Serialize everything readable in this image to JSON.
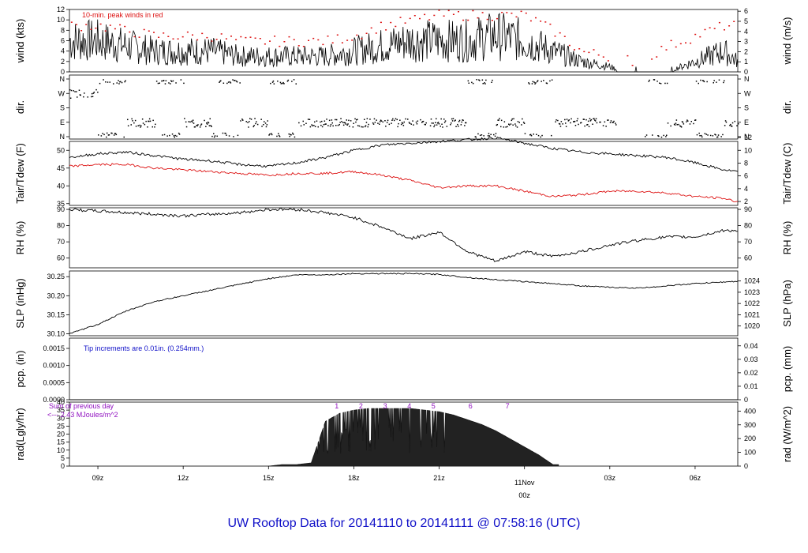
{
  "title": "UW Rooftop Data for 20141110  to  20141111 @ 07:58:16  (UTC)",
  "colors": {
    "red": "#dd1111",
    "black": "#000000",
    "blue": "#1010c8",
    "purple": "#9010c0",
    "title": "#1010c8"
  },
  "x_axis": {
    "hours_span": 23.5,
    "ticks": [
      {
        "h": 1,
        "label": "09z"
      },
      {
        "h": 4,
        "label": "12z"
      },
      {
        "h": 7,
        "label": "15z"
      },
      {
        "h": 10,
        "label": "18z"
      },
      {
        "h": 13,
        "label": "21z"
      },
      {
        "h": 16,
        "label": "00z"
      },
      {
        "h": 19,
        "label": "03z"
      },
      {
        "h": 22,
        "label": "06z"
      }
    ],
    "date_label": "11Nov",
    "date_label_hour": 16
  },
  "panels": {
    "wind": {
      "left_label": "wind (kts)",
      "right_label": "wind (m/s)",
      "note": "10-min. peak winds in red",
      "left_ticks": [
        "0",
        "2",
        "4",
        "6",
        "8",
        "10",
        "12"
      ],
      "right_ticks": [
        "0",
        "1",
        "2",
        "3",
        "4",
        "5",
        "6"
      ]
    },
    "dir": {
      "left_label": "dir.",
      "right_label": "dir.",
      "ticks": [
        "N",
        "E",
        "S",
        "W",
        "N"
      ]
    },
    "temp": {
      "left_label": "Tair/Tdew (F)",
      "right_label": "Tair/Tdew (C)",
      "left_ticks": [
        "35",
        "40",
        "45",
        "50"
      ],
      "right_ticks": [
        "2",
        "4",
        "6",
        "8",
        "10",
        "12"
      ]
    },
    "rh": {
      "left_label": "RH (%)",
      "right_label": "RH (%)",
      "left_ticks": [
        "60",
        "70",
        "80",
        "90"
      ],
      "right_ticks": [
        "60",
        "70",
        "80",
        "90"
      ]
    },
    "slp": {
      "left_label": "SLP (inHg)",
      "right_label": "SLP (hPa)",
      "left_ticks": [
        "30.10",
        "30.15",
        "30.20",
        "30.25"
      ],
      "right_ticks": [
        "1020",
        "1021",
        "1022",
        "1023",
        "1024"
      ]
    },
    "pcp": {
      "left_label": "pcp. (in)",
      "right_label": "pcp. (mm)",
      "note": "Tip increments are 0.01in. (0.254mm.)",
      "left_ticks": [
        "0.0000",
        "0.0005",
        "0.0010",
        "0.0015"
      ],
      "right_ticks": [
        "0",
        "0.01",
        "0.02",
        "0.03",
        "0.04"
      ]
    },
    "rad": {
      "left_label": "rad(Lgly/hr)",
      "right_label": "rad (W/m^2)",
      "note1": "Sum of previous day",
      "note2": "<--- 2.43 MJoules/m^2",
      "left_ticks": [
        "0",
        "5",
        "10",
        "15",
        "20",
        "25",
        "30",
        "35",
        "40"
      ],
      "right_ticks": [
        "0",
        "100",
        "200",
        "300",
        "400"
      ],
      "hour_marks": [
        "1",
        "2",
        "3",
        "4",
        "5",
        "6",
        "7"
      ]
    }
  },
  "chart_data": [
    {
      "type": "line",
      "name": "wind",
      "x_unit": "hours after 08z 2014-11-10",
      "series": [
        {
          "name": "wind speed (kts)",
          "color": "#000000",
          "x": [
            0,
            1,
            2,
            3,
            4,
            5,
            6,
            7,
            8,
            9,
            10,
            11,
            12,
            13,
            14,
            15,
            16,
            17,
            18,
            19,
            19.5,
            20,
            21,
            22,
            23,
            23.5
          ],
          "values": [
            6,
            6,
            5,
            4,
            4,
            4,
            3,
            3,
            3,
            3,
            4,
            5,
            6,
            6,
            6,
            7,
            6,
            4,
            2,
            1,
            0,
            0,
            0,
            2,
            4,
            2
          ]
        },
        {
          "name": "10-min peak (kts)",
          "color": "#dd1111",
          "x": [
            0,
            1,
            2,
            3,
            4,
            5,
            6,
            7,
            8,
            9,
            10,
            11,
            12,
            13,
            14,
            15,
            16,
            17,
            18,
            19,
            20,
            21,
            22,
            23
          ],
          "values": [
            9,
            9,
            8,
            7,
            7,
            7,
            6,
            6,
            6,
            6,
            7,
            9,
            10,
            11,
            11,
            11,
            11,
            8,
            4,
            3,
            2,
            5,
            7,
            9
          ]
        }
      ],
      "ylim": [
        0,
        12
      ]
    },
    {
      "type": "scatter",
      "name": "wind direction",
      "categories_y": [
        "N",
        "E",
        "S",
        "W",
        "N"
      ],
      "x": [
        0,
        0.5,
        1,
        2,
        3,
        4,
        5,
        6,
        7,
        8,
        9,
        10,
        11,
        12,
        13,
        14,
        15,
        16,
        17,
        18,
        19,
        20,
        21,
        22,
        23
      ],
      "values": [
        "W",
        "W",
        "N",
        "E",
        "N",
        "E",
        "N",
        "E",
        "N",
        "E",
        "E",
        "E",
        "E",
        "E",
        "E",
        "N",
        "E",
        "N",
        "E",
        "E",
        "E",
        "N",
        "E",
        "N",
        "E"
      ]
    },
    {
      "type": "line",
      "name": "temperature",
      "x": [
        0,
        1,
        2,
        3,
        4,
        5,
        6,
        7,
        8,
        9,
        10,
        11,
        12,
        13,
        14,
        15,
        16,
        17,
        18,
        19,
        20,
        21,
        22,
        23,
        23.5
      ],
      "series": [
        {
          "name": "Tair (F)",
          "color": "#000000",
          "values": [
            48,
            49,
            49.5,
            48.5,
            47.5,
            47,
            46,
            45.5,
            46.5,
            48,
            50,
            51.5,
            52,
            52.5,
            53,
            53.5,
            52,
            50.5,
            49.5,
            49,
            48.5,
            48,
            46.5,
            44.5,
            44
          ]
        },
        {
          "name": "Tdew (F)",
          "color": "#dd1111",
          "values": [
            45.5,
            46,
            46,
            45,
            44.5,
            44,
            43.5,
            43,
            43.5,
            43.5,
            44,
            43,
            41.5,
            39.5,
            40,
            40,
            38.5,
            37,
            37.5,
            38.5,
            38.5,
            38,
            37,
            36.5,
            35.5
          ]
        }
      ],
      "ylim": [
        34.5,
        52.5
      ]
    },
    {
      "type": "line",
      "name": "RH",
      "x": [
        0,
        1,
        2,
        3,
        4,
        5,
        6,
        7,
        8,
        9,
        10,
        11,
        12,
        13,
        14,
        15,
        16,
        17,
        18,
        19,
        20,
        21,
        22,
        23,
        23.5
      ],
      "series": [
        {
          "name": "RH (%)",
          "color": "#000000",
          "values": [
            90,
            89,
            88,
            87,
            86,
            87,
            88,
            90,
            90,
            88,
            85,
            79,
            72,
            76,
            64,
            58,
            64,
            61,
            64,
            68,
            71,
            73,
            73,
            77,
            77
          ]
        }
      ],
      "ylim": [
        54,
        91
      ]
    },
    {
      "type": "line",
      "name": "SLP",
      "x": [
        0,
        1,
        2,
        3,
        4,
        5,
        6,
        7,
        8,
        9,
        10,
        11,
        12,
        13,
        14,
        15,
        16,
        17,
        18,
        19,
        20,
        21,
        22,
        23,
        23.5
      ],
      "series": [
        {
          "name": "SLP (inHg)",
          "color": "#000000",
          "values": [
            30.1,
            30.125,
            30.16,
            30.185,
            30.2,
            30.215,
            30.23,
            30.245,
            30.255,
            30.255,
            30.258,
            30.258,
            30.258,
            30.256,
            30.248,
            30.242,
            30.237,
            30.232,
            30.226,
            30.222,
            30.22,
            30.226,
            30.232,
            30.236,
            30.238
          ]
        }
      ],
      "ylim": [
        30.095,
        30.265
      ]
    },
    {
      "type": "line",
      "name": "precipitation",
      "x": [
        0,
        23.5
      ],
      "series": [
        {
          "name": "pcp (in)",
          "color": "#000000",
          "values": [
            0,
            0
          ]
        }
      ],
      "ylim": [
        0,
        0.0018
      ]
    },
    {
      "type": "area",
      "name": "solar radiation",
      "x": [
        0,
        7,
        7.5,
        8,
        8.5,
        9,
        9.5,
        10,
        10.5,
        11,
        11.5,
        12,
        12.5,
        13,
        13.5,
        14,
        14.5,
        15,
        15.5,
        16,
        16.5,
        17,
        23.5
      ],
      "series": [
        {
          "name": "rad (Lgly/hr)",
          "color": "#000000",
          "values": [
            0,
            0,
            1,
            1,
            2,
            28,
            33,
            35,
            36,
            36,
            36,
            36,
            35,
            34,
            32,
            29,
            26,
            22,
            17,
            12,
            7,
            1,
            0
          ]
        }
      ],
      "ylim": [
        0,
        40
      ]
    }
  ]
}
